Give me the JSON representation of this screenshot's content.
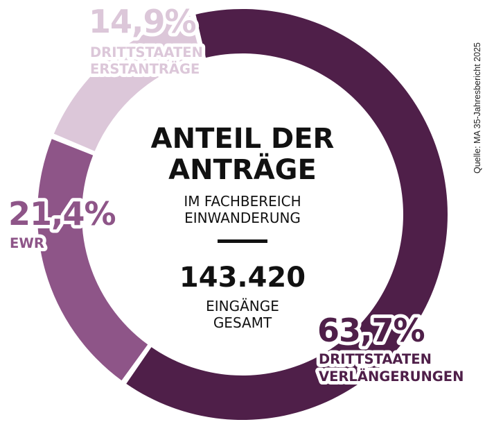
{
  "chart_data": {
    "type": "pie",
    "variant": "donut",
    "slices": [
      {
        "label_line1": "DRITTSTAATEN",
        "label_line2": "VERLÄNGERUNGEN",
        "value": 63.7,
        "value_label": "63,7%",
        "color": "#4f1f49"
      },
      {
        "label_line1": "EWR",
        "label_line2": "",
        "value": 21.4,
        "value_label": "21,4%",
        "color": "#8e5588"
      },
      {
        "label_line1": "DRITTSTAATEN",
        "label_line2": "ERSTANTRÄGE",
        "value": 14.9,
        "value_label": "14,9%",
        "color": "#dcc7d9"
      }
    ],
    "center": {
      "title_line1": "ANTEIL DER",
      "title_line2": "ANTRÄGE",
      "subtitle_line1": "IM FACHBEREICH",
      "subtitle_line2": "EINWANDERUNG",
      "total": "143.420",
      "total_label_line1": "EINGÄNGE",
      "total_label_line2": "GESAMT"
    },
    "source": "Quelle: MA 35-Jahresbericht 2025"
  }
}
